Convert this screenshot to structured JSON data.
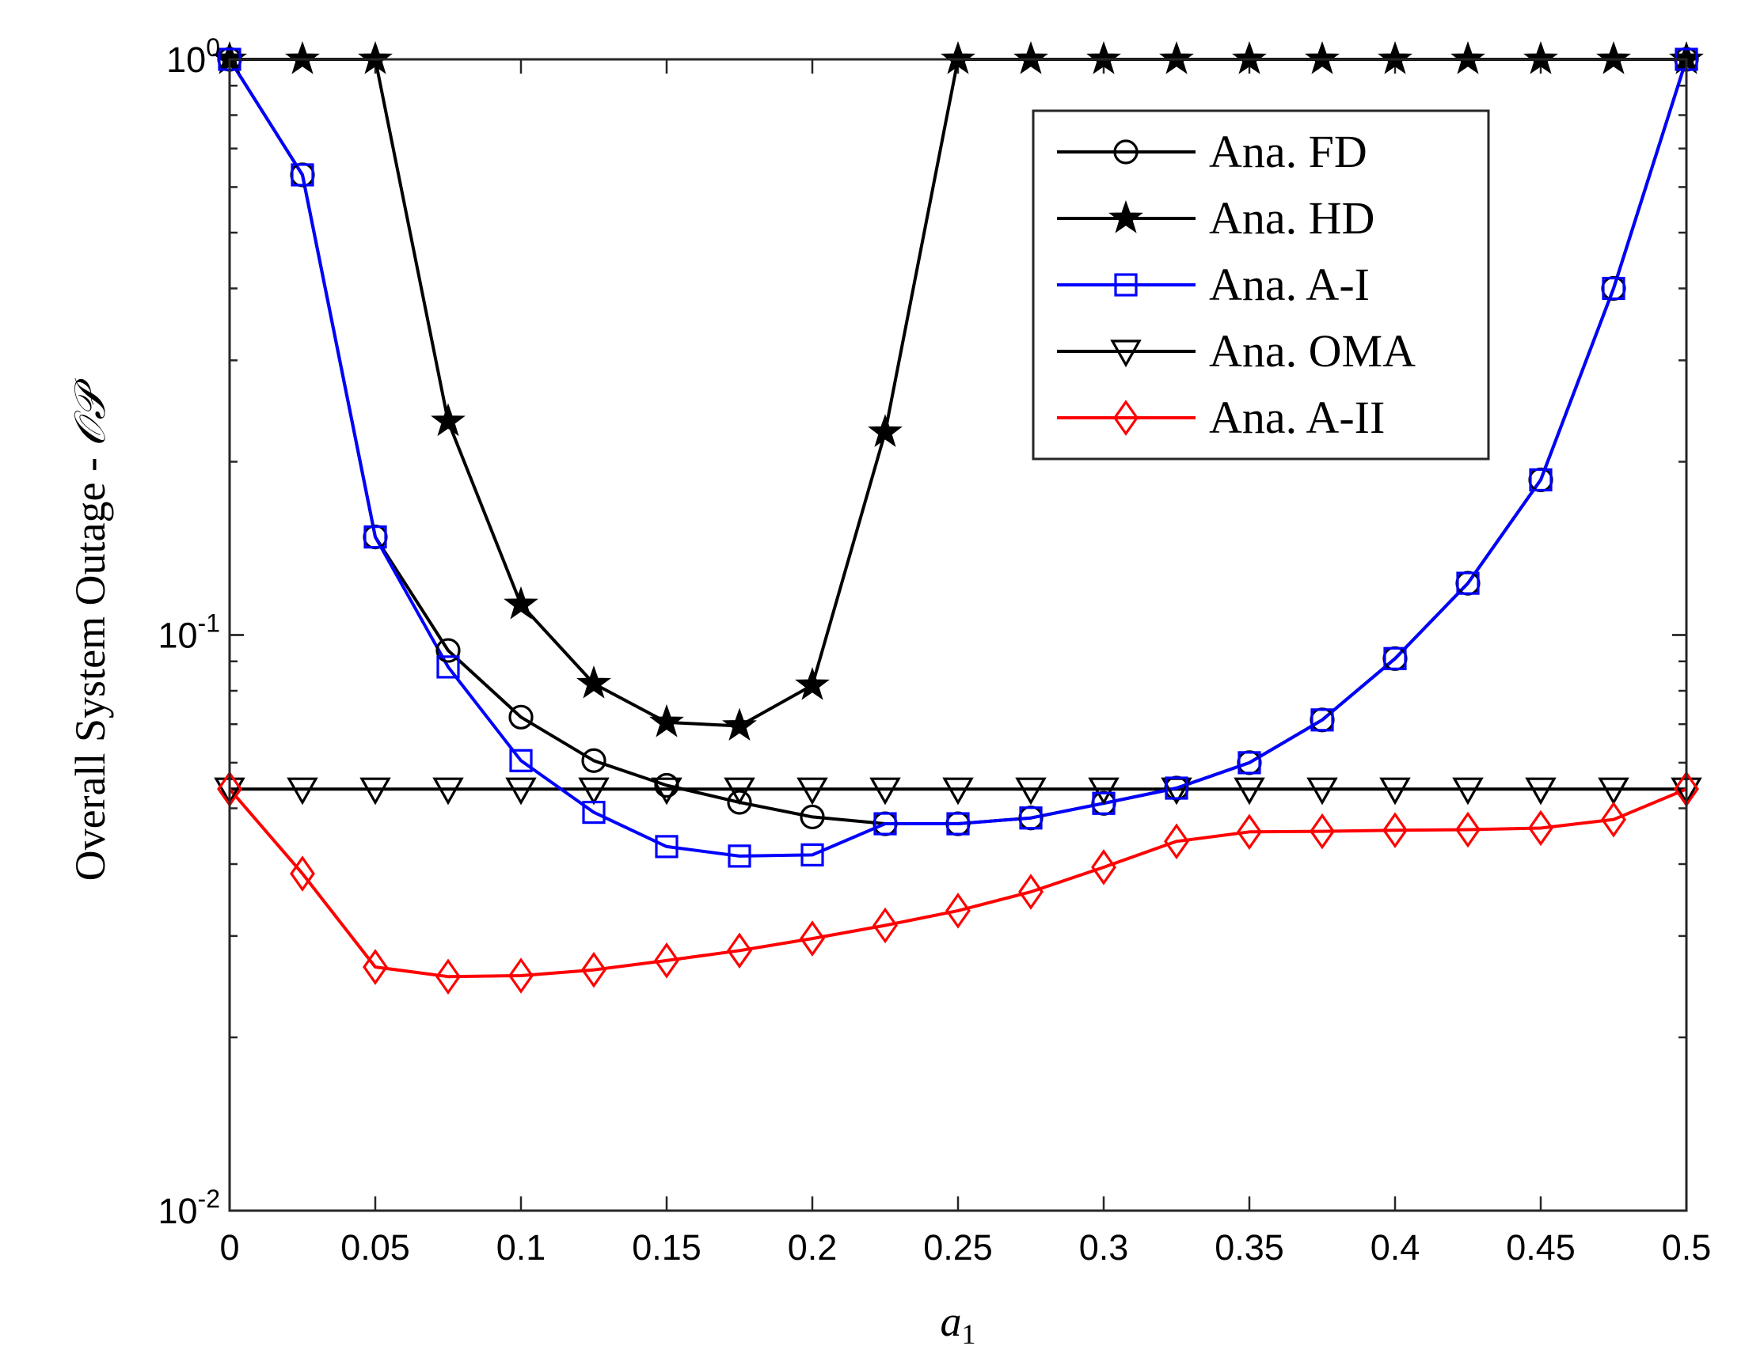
{
  "chart_data": {
    "type": "line",
    "title": "",
    "xlabel": "a",
    "xlabel_sub": "1",
    "ylabel": "Overall System Outage - ",
    "ylabel_symbol": "𝒪𝒫",
    "xscale": "linear",
    "yscale": "log",
    "xlim": [
      0,
      0.5
    ],
    "ylim": [
      0.01,
      1
    ],
    "x_ticks": [
      0,
      0.05,
      0.1,
      0.15,
      0.2,
      0.25,
      0.3,
      0.35,
      0.4,
      0.45,
      0.5
    ],
    "x_tick_labels": [
      "0",
      "0.05",
      "0.1",
      "0.15",
      "0.2",
      "0.25",
      "0.3",
      "0.35",
      "0.4",
      "0.45",
      "0.5"
    ],
    "y_ticks": [
      0.01,
      0.1,
      1
    ],
    "y_tick_labels": [
      {
        "base": "10",
        "exp": "-2"
      },
      {
        "base": "10",
        "exp": "-1"
      },
      {
        "base": "10",
        "exp": "0"
      }
    ],
    "legend_position": "top-right",
    "x": [
      0,
      0.025,
      0.05,
      0.075,
      0.1,
      0.125,
      0.15,
      0.175,
      0.2,
      0.225,
      0.25,
      0.275,
      0.3,
      0.325,
      0.35,
      0.375,
      0.4,
      0.425,
      0.45,
      0.475,
      0.5
    ],
    "series": [
      {
        "name": "Ana. FD",
        "color": "#000000",
        "marker": "circle",
        "values": [
          1,
          0.63,
          0.148,
          0.094,
          0.072,
          0.0605,
          0.0548,
          0.0512,
          0.0483,
          0.047,
          0.047,
          0.0481,
          0.051,
          0.0542,
          0.06,
          0.0712,
          0.091,
          0.123,
          0.186,
          0.4,
          1
        ]
      },
      {
        "name": "Ana. HD",
        "color": "#000000",
        "marker": "star",
        "values": [
          1,
          1,
          1,
          0.235,
          0.113,
          0.0823,
          0.0705,
          0.0695,
          0.0818,
          0.225,
          1,
          1,
          1,
          1,
          1,
          1,
          1,
          1,
          1,
          1,
          1
        ]
      },
      {
        "name": "Ana. A-I",
        "color": "#0000ff",
        "marker": "square",
        "values": [
          1,
          0.63,
          0.148,
          0.088,
          0.0605,
          0.0492,
          0.0429,
          0.0413,
          0.0415,
          0.047,
          0.047,
          0.0481,
          0.051,
          0.0542,
          0.06,
          0.0712,
          0.091,
          0.123,
          0.186,
          0.4,
          1
        ]
      },
      {
        "name": "Ana. OMA",
        "color": "#000000",
        "marker": "triangle-down",
        "values": [
          0.054,
          0.054,
          0.054,
          0.054,
          0.054,
          0.054,
          0.054,
          0.054,
          0.054,
          0.054,
          0.054,
          0.054,
          0.054,
          0.054,
          0.054,
          0.054,
          0.054,
          0.054,
          0.054,
          0.054,
          0.054
        ]
      },
      {
        "name": "Ana. A-II",
        "color": "#ff0000",
        "marker": "diamond",
        "values": [
          0.054,
          0.0385,
          0.0265,
          0.0255,
          0.0256,
          0.0262,
          0.0272,
          0.0283,
          0.0297,
          0.0313,
          0.0332,
          0.0358,
          0.0395,
          0.0438,
          0.0455,
          0.0456,
          0.0458,
          0.0459,
          0.0462,
          0.0478,
          0.054
        ]
      }
    ]
  }
}
